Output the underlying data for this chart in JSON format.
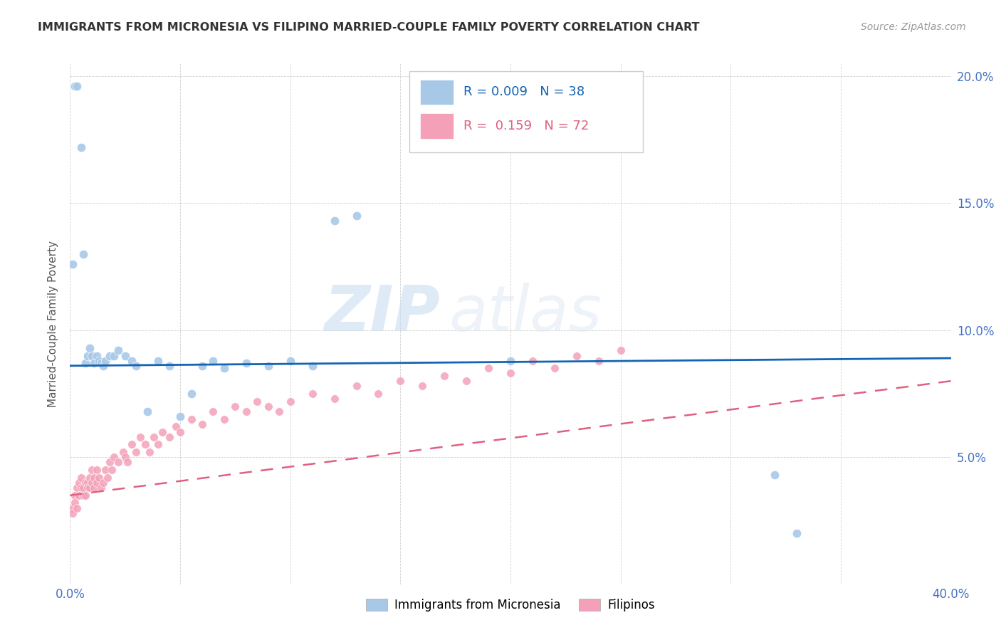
{
  "title": "IMMIGRANTS FROM MICRONESIA VS FILIPINO MARRIED-COUPLE FAMILY POVERTY CORRELATION CHART",
  "source": "Source: ZipAtlas.com",
  "ylabel": "Married-Couple Family Poverty",
  "xlim": [
    0.0,
    0.4
  ],
  "ylim": [
    0.0,
    0.205
  ],
  "micronesia_color": "#a8c8e8",
  "filipino_color": "#f4a0b8",
  "micronesia_line_color": "#1464b4",
  "filipino_line_color": "#e06080",
  "micronesia_R": 0.009,
  "micronesia_N": 38,
  "filipino_R": 0.159,
  "filipino_N": 72,
  "watermark_zip": "ZIP",
  "watermark_atlas": "atlas",
  "micronesia_x": [
    0.001,
    0.002,
    0.003,
    0.005,
    0.006,
    0.007,
    0.008,
    0.009,
    0.01,
    0.011,
    0.012,
    0.013,
    0.014,
    0.015,
    0.016,
    0.018,
    0.02,
    0.022,
    0.025,
    0.028,
    0.03,
    0.035,
    0.04,
    0.045,
    0.05,
    0.055,
    0.06,
    0.065,
    0.07,
    0.08,
    0.09,
    0.1,
    0.11,
    0.12,
    0.13,
    0.2,
    0.32,
    0.33
  ],
  "micronesia_y": [
    0.126,
    0.196,
    0.196,
    0.172,
    0.13,
    0.087,
    0.09,
    0.093,
    0.09,
    0.087,
    0.09,
    0.088,
    0.087,
    0.086,
    0.088,
    0.09,
    0.09,
    0.092,
    0.09,
    0.088,
    0.086,
    0.068,
    0.088,
    0.086,
    0.066,
    0.075,
    0.086,
    0.088,
    0.085,
    0.087,
    0.086,
    0.088,
    0.086,
    0.143,
    0.145,
    0.088,
    0.043,
    0.02
  ],
  "filipino_x": [
    0.001,
    0.001,
    0.002,
    0.002,
    0.003,
    0.003,
    0.004,
    0.004,
    0.005,
    0.005,
    0.006,
    0.006,
    0.007,
    0.007,
    0.008,
    0.008,
    0.009,
    0.009,
    0.01,
    0.01,
    0.011,
    0.011,
    0.012,
    0.012,
    0.013,
    0.014,
    0.015,
    0.016,
    0.017,
    0.018,
    0.019,
    0.02,
    0.022,
    0.024,
    0.025,
    0.026,
    0.028,
    0.03,
    0.032,
    0.034,
    0.036,
    0.038,
    0.04,
    0.042,
    0.045,
    0.048,
    0.05,
    0.055,
    0.06,
    0.065,
    0.07,
    0.075,
    0.08,
    0.085,
    0.09,
    0.095,
    0.1,
    0.11,
    0.12,
    0.13,
    0.14,
    0.15,
    0.16,
    0.17,
    0.18,
    0.19,
    0.2,
    0.21,
    0.22,
    0.23,
    0.24,
    0.25
  ],
  "filipino_y": [
    0.03,
    0.028,
    0.035,
    0.032,
    0.038,
    0.03,
    0.04,
    0.035,
    0.038,
    0.042,
    0.035,
    0.038,
    0.04,
    0.035,
    0.04,
    0.038,
    0.042,
    0.038,
    0.045,
    0.04,
    0.038,
    0.042,
    0.045,
    0.04,
    0.042,
    0.038,
    0.04,
    0.045,
    0.042,
    0.048,
    0.045,
    0.05,
    0.048,
    0.052,
    0.05,
    0.048,
    0.055,
    0.052,
    0.058,
    0.055,
    0.052,
    0.058,
    0.055,
    0.06,
    0.058,
    0.062,
    0.06,
    0.065,
    0.063,
    0.068,
    0.065,
    0.07,
    0.068,
    0.072,
    0.07,
    0.068,
    0.072,
    0.075,
    0.073,
    0.078,
    0.075,
    0.08,
    0.078,
    0.082,
    0.08,
    0.085,
    0.083,
    0.088,
    0.085,
    0.09,
    0.088,
    0.092
  ],
  "legend_items": [
    {
      "color": "#a8c8e8",
      "R": 0.009,
      "N": 38,
      "text_color": "#1464b4"
    },
    {
      "color": "#f4a0b8",
      "R": 0.159,
      "N": 72,
      "text_color": "#e06080"
    }
  ]
}
